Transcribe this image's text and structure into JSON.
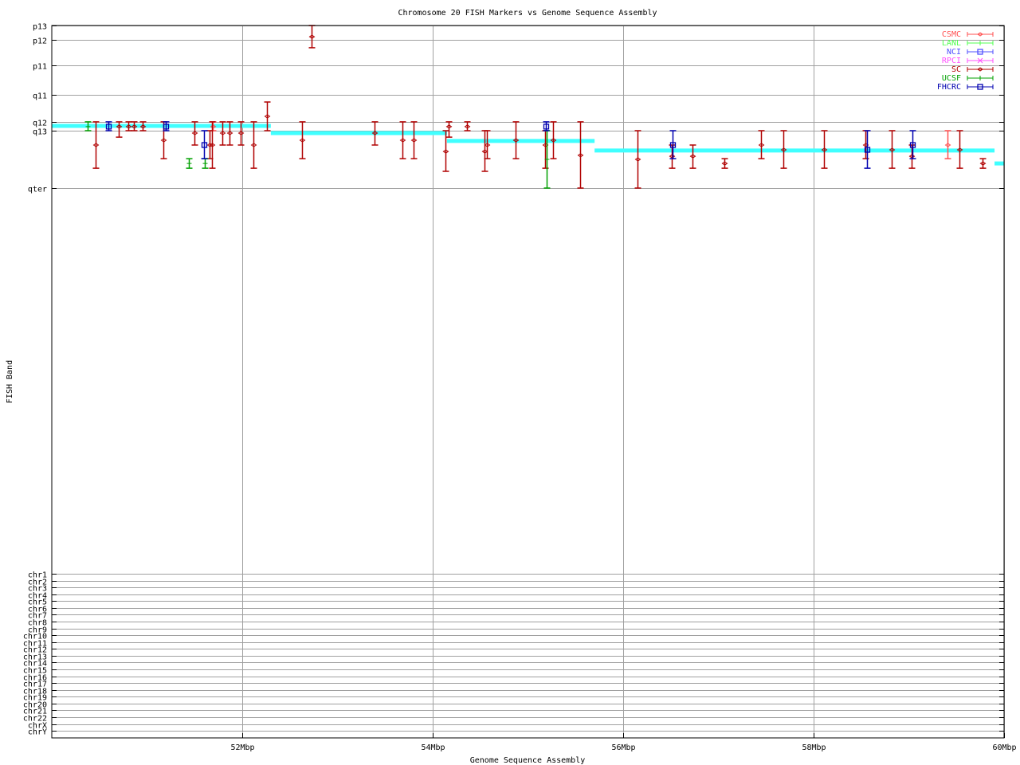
{
  "chart_data": {
    "type": "scatter",
    "title": "Chromosome 20 FISH Markers vs Genome Sequence Assembly",
    "xlabel": "Genome Sequence Assembly",
    "ylabel": "FISH Band",
    "xlim": [
      50,
      60
    ],
    "ylim": [
      0,
      298
    ],
    "grid": true,
    "legend_position": "top-right",
    "x_ticks": [
      {
        "value": 52,
        "label": "52Mbp"
      },
      {
        "value": 54,
        "label": "54Mbp"
      },
      {
        "value": 56,
        "label": "56Mbp"
      },
      {
        "value": 58,
        "label": "58Mbp"
      },
      {
        "value": 60,
        "label": "60Mbp"
      }
    ],
    "y_ticks": [
      {
        "value": 0,
        "label": "p13"
      },
      {
        "value": 6,
        "label": "p12"
      },
      {
        "value": 16.7,
        "label": "p11"
      },
      {
        "value": 29,
        "label": "q11"
      },
      {
        "value": 40.3,
        "label": "q12"
      },
      {
        "value": 44,
        "label": "q13"
      },
      {
        "value": 68,
        "label": "qter"
      },
      {
        "value": 229.3,
        "label": "chr1"
      },
      {
        "value": 232.2,
        "label": "chr2"
      },
      {
        "value": 235.0,
        "label": "chr3"
      },
      {
        "value": 237.9,
        "label": "chr4"
      },
      {
        "value": 240.7,
        "label": "chr5"
      },
      {
        "value": 243.6,
        "label": "chr6"
      },
      {
        "value": 246.4,
        "label": "chr7"
      },
      {
        "value": 249.3,
        "label": "chr8"
      },
      {
        "value": 252.2,
        "label": "chr9"
      },
      {
        "value": 255.0,
        "label": "chr10"
      },
      {
        "value": 257.9,
        "label": "chr11"
      },
      {
        "value": 260.7,
        "label": "chr12"
      },
      {
        "value": 263.6,
        "label": "chr13"
      },
      {
        "value": 266.4,
        "label": "chr14"
      },
      {
        "value": 269.3,
        "label": "chr15"
      },
      {
        "value": 272.2,
        "label": "chr16"
      },
      {
        "value": 275.0,
        "label": "chr17"
      },
      {
        "value": 277.9,
        "label": "chr18"
      },
      {
        "value": 280.7,
        "label": "chr19"
      },
      {
        "value": 283.6,
        "label": "chr20"
      },
      {
        "value": 286.4,
        "label": "chr21"
      },
      {
        "value": 289.3,
        "label": "chr22"
      },
      {
        "value": 292.2,
        "label": "chrX"
      },
      {
        "value": 295.0,
        "label": "chrY"
      }
    ],
    "series": [
      {
        "name": "CSMC",
        "color": "#ff5050",
        "marker": "diamond",
        "points": [
          [
            51.69,
            42.3,
            40.3,
            44
          ],
          [
            59.41,
            50,
            44,
            55.7
          ]
        ]
      },
      {
        "name": "LANL",
        "color": "#50ff50",
        "marker": "plus",
        "points": []
      },
      {
        "name": "NCI",
        "color": "#5050ff",
        "marker": "square",
        "points": []
      },
      {
        "name": "RPCI",
        "color": "#ff50ff",
        "marker": "cross",
        "points": []
      },
      {
        "name": "SC",
        "color": "#b00000",
        "marker": "diamond",
        "points": [
          [
            50.46,
            50,
            40.3,
            59.7
          ],
          [
            50.7,
            42.3,
            40.3,
            46.7
          ],
          [
            50.8,
            42.3,
            40.3,
            44
          ],
          [
            50.86,
            42.3,
            40.3,
            44
          ],
          [
            50.95,
            42.3,
            40.3,
            44
          ],
          [
            51.17,
            48,
            40.3,
            55.7
          ],
          [
            51.5,
            45,
            40.3,
            50
          ],
          [
            51.66,
            50,
            44,
            55.7
          ],
          [
            51.68,
            50,
            40.3,
            59.7
          ],
          [
            51.79,
            45,
            40.3,
            50
          ],
          [
            51.87,
            45,
            40.3,
            50
          ],
          [
            51.98,
            45,
            40.3,
            50
          ],
          [
            52.12,
            50,
            40.3,
            59.7
          ],
          [
            52.26,
            38,
            32,
            44
          ],
          [
            52.73,
            4.7,
            0,
            9.3
          ],
          [
            52.63,
            48,
            40.3,
            55.7
          ],
          [
            53.39,
            45,
            40.3,
            50
          ],
          [
            53.68,
            48,
            40.3,
            55.7
          ],
          [
            53.8,
            48,
            40.3,
            55.7
          ],
          [
            54.13,
            52.7,
            44,
            61
          ],
          [
            54.17,
            42.3,
            40.3,
            46.7
          ],
          [
            54.36,
            42.3,
            40.3,
            44
          ],
          [
            54.54,
            52.7,
            44,
            61
          ],
          [
            54.57,
            50,
            44,
            55.7
          ],
          [
            54.87,
            48,
            40.3,
            55.7
          ],
          [
            55.18,
            50,
            44,
            59.7
          ],
          [
            55.26,
            48,
            40.3,
            55.7
          ],
          [
            55.55,
            54.3,
            40.3,
            68
          ],
          [
            56.15,
            56,
            44,
            68
          ],
          [
            56.51,
            54.7,
            50,
            59.7
          ],
          [
            56.73,
            54.7,
            50,
            59.7
          ],
          [
            57.06,
            57.7,
            55.7,
            59.7
          ],
          [
            57.45,
            50,
            44,
            55.7
          ],
          [
            57.68,
            52,
            44,
            59.7
          ],
          [
            58.11,
            52,
            44,
            59.7
          ],
          [
            58.54,
            50,
            44,
            55.7
          ],
          [
            58.82,
            52,
            44,
            59.7
          ],
          [
            59.03,
            54.7,
            50,
            59.7
          ],
          [
            59.53,
            52,
            44,
            59.7
          ],
          [
            59.77,
            57.7,
            55.7,
            59.7
          ]
        ]
      },
      {
        "name": "UCSF",
        "color": "#00a000",
        "marker": "plus",
        "points": [
          [
            50.38,
            42.3,
            40.3,
            44
          ],
          [
            51.44,
            57.7,
            55.7,
            59.7
          ],
          [
            51.61,
            57.7,
            55.7,
            59.7
          ],
          [
            55.2,
            56,
            44,
            68
          ]
        ]
      },
      {
        "name": "FHCRC",
        "color": "#0000b0",
        "marker": "square",
        "points": [
          [
            50.59,
            42.3,
            40.3,
            44
          ],
          [
            51.2,
            42.3,
            40.3,
            44
          ],
          [
            51.6,
            50,
            44,
            55.7
          ],
          [
            55.19,
            42.3,
            40.3,
            44
          ],
          [
            56.52,
            50,
            44,
            55.7
          ],
          [
            58.56,
            52,
            44,
            59.7
          ],
          [
            59.04,
            50,
            44,
            55.7
          ]
        ]
      }
    ],
    "assembly_line": {
      "color": "#40ffff",
      "steps": [
        [
          50.0,
          52.3,
          42
        ],
        [
          52.3,
          54.15,
          45
        ],
        [
          54.15,
          55.7,
          48.3
        ],
        [
          55.7,
          59.9,
          52.3
        ],
        [
          59.9,
          60.0,
          57.7
        ]
      ]
    }
  }
}
